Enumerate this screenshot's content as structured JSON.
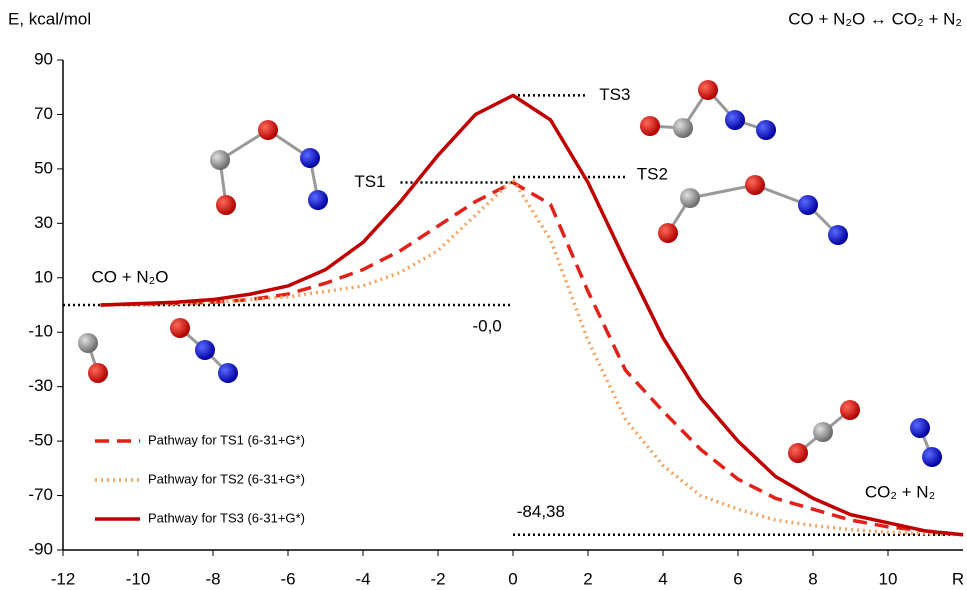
{
  "chart_data": {
    "type": "line",
    "title": "CO + N₂O ↔ CO₂ + N₂",
    "ylabel": "E, kcal/mol",
    "xlabel": "R",
    "x": [
      -11,
      -10,
      -9,
      -8,
      -7,
      -6,
      -5,
      -4,
      -3,
      -2,
      -1,
      0,
      1,
      2,
      3,
      4,
      5,
      6,
      7,
      8,
      9,
      10,
      11,
      12
    ],
    "series": [
      {
        "name": "Pathway for TS1 (6-31+G*)",
        "color": "#e32119",
        "style": "dashed",
        "values": [
          0,
          0.3,
          0.6,
          1,
          2,
          4,
          8,
          13,
          20,
          29,
          38,
          45,
          37,
          5,
          -24,
          -39,
          -53,
          -64,
          -71,
          -75,
          -79,
          -81.5,
          -83,
          -84.38
        ]
      },
      {
        "name": "Pathway for TS2 (6-31+G*)",
        "color": "#f4a460",
        "style": "dotted",
        "values": [
          0,
          0.2,
          0.5,
          1,
          2,
          3,
          5,
          7,
          12,
          20,
          33,
          46,
          24,
          -13,
          -42,
          -59,
          -70,
          -75,
          -79,
          -81,
          -82.5,
          -83.5,
          -84,
          -84.38
        ]
      },
      {
        "name": "Pathway for TS3 (6-31+G*)",
        "color": "#c00000",
        "style": "solid",
        "values": [
          0,
          0.5,
          1,
          2,
          4,
          7,
          13,
          23,
          38,
          55,
          70,
          77,
          68,
          45,
          16,
          -12,
          -34,
          -50,
          -63,
          -71,
          -77,
          -80,
          -83,
          -84.38
        ]
      }
    ],
    "levels": [
      {
        "value": 45,
        "label": "TS1"
      },
      {
        "value": 47,
        "label": "TS2"
      },
      {
        "value": 77,
        "label": "TS3"
      },
      {
        "value": 0,
        "label": "-0,0"
      },
      {
        "value": -84.38,
        "label": "-84,38"
      }
    ],
    "annotations": [
      "CO + N₂O",
      "CO₂ + N₂"
    ],
    "xlim": [
      -12,
      12
    ],
    "xticks": [
      -12,
      -10,
      -8,
      -6,
      -4,
      -2,
      0,
      2,
      4,
      6,
      8,
      10
    ],
    "ylim": [
      -90,
      90
    ],
    "yticks": [
      -90,
      -70,
      -50,
      -30,
      -10,
      10,
      30,
      50,
      70,
      90
    ],
    "legend": "lower left",
    "grid": false
  }
}
